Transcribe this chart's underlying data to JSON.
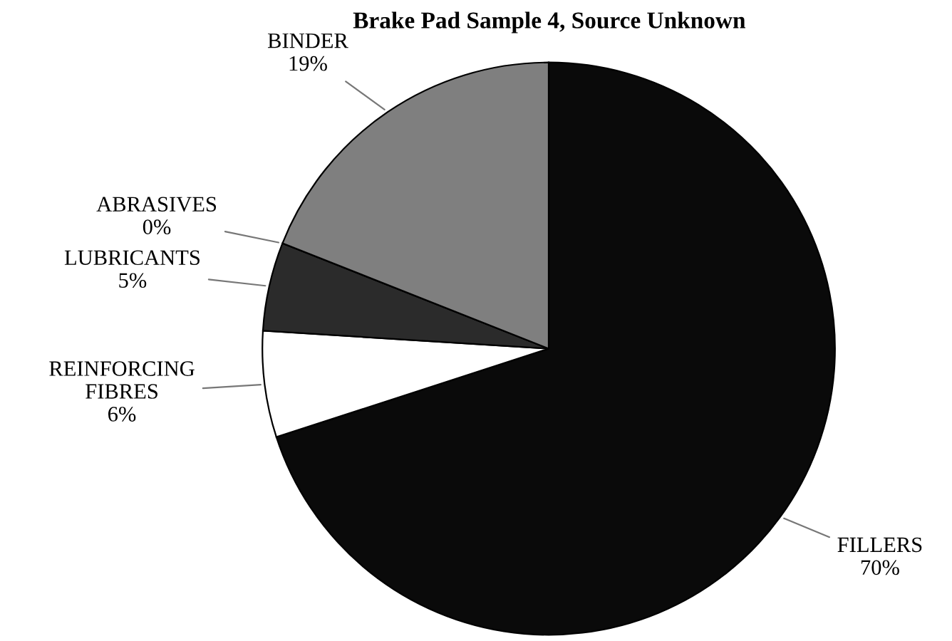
{
  "chart_data": {
    "type": "pie",
    "title": "Brake Pad Sample 4, Source Unknown",
    "categories": [
      "FILLERS",
      "REINFORCING\nFIBRES",
      "LUBRICANTS",
      "ABRASIVES",
      "BINDER"
    ],
    "values": [
      70,
      6,
      5,
      0,
      19
    ],
    "value_labels": [
      "70%",
      "6%",
      "5%",
      "0%",
      "19%"
    ],
    "colors": [
      "#0a0a0a",
      "#ffffff",
      "#2b2b2b",
      "#c8c8c8",
      "#7f7f7f"
    ],
    "legend": false
  }
}
